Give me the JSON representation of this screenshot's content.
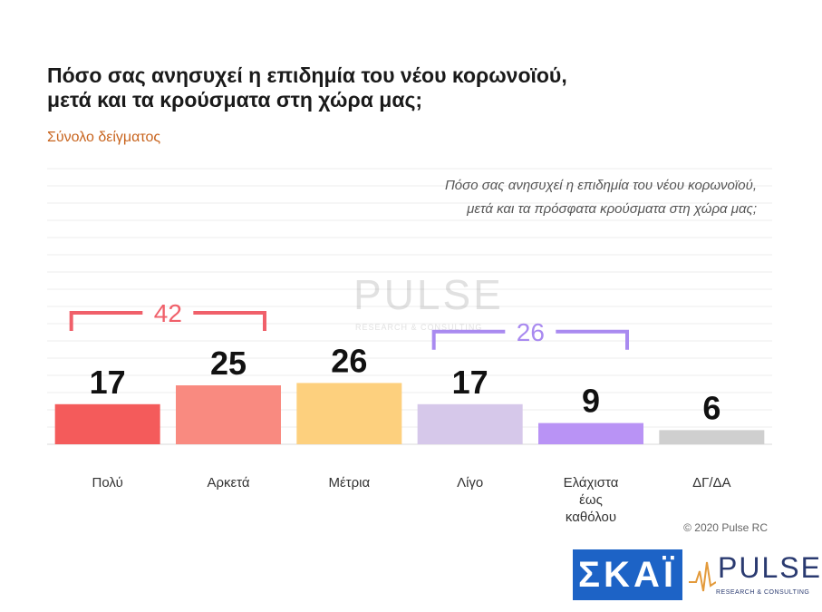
{
  "header": {
    "title_line1": "Πόσο σας ανησυχεί η επιδημία του νέου κορωνοϊού,",
    "title_line2": "μετά και τα κρούσματα στη χώρα μας;",
    "subtitle": "Σύνολο δείγματος"
  },
  "question": {
    "line1": "Πόσο σας ανησυχεί η επιδημία του νέου κορωνοϊού,",
    "line2": "μετά και τα πρόσφατα κρούσματα στη χώρα μας;"
  },
  "chart_data": {
    "type": "bar",
    "categories": [
      [
        "Πολύ"
      ],
      [
        "Αρκετά"
      ],
      [
        "Μέτρια"
      ],
      [
        "Λίγο"
      ],
      [
        "Ελάχιστα",
        "έως",
        "καθόλου"
      ],
      [
        "ΔΓ/ΔΑ"
      ]
    ],
    "values": [
      17,
      25,
      26,
      17,
      9,
      6
    ],
    "colors": [
      "#f45b5b",
      "#f98a80",
      "#fdd07e",
      "#d6c8ea",
      "#b993f5",
      "#cfcfcf"
    ],
    "ylim": [
      0,
      50
    ],
    "grid": true,
    "annotations": [
      {
        "label": "42",
        "from": 0,
        "to": 1,
        "color": "#f0606a"
      },
      {
        "label": "26",
        "from": 3,
        "to": 4,
        "color": "#a98af0"
      }
    ]
  },
  "footer": {
    "copyright": "© 2020 Pulse RC",
    "logo_skai": "ΣΚΑΪ",
    "logo_pulse": "PULSE",
    "logo_pulse_tag": "RESEARCH & CONSULTING"
  }
}
